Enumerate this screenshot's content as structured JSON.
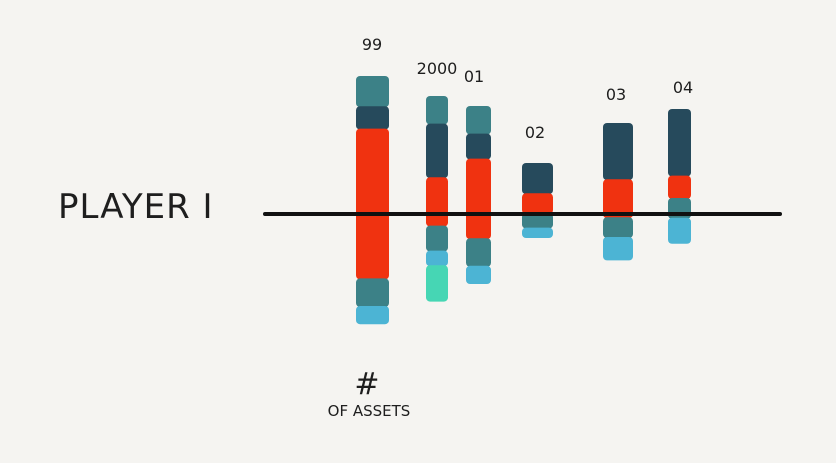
{
  "row_label": "PLAYER I",
  "axis_note": {
    "symbol": "#",
    "text": "OF ASSETS"
  },
  "colors": {
    "dark_navy": "#264a5c",
    "teal": "#3c8187",
    "red_orange": "#f03210",
    "light_blue": "#4cb4d4",
    "mint": "#46d6b4",
    "baseline": "#111111",
    "background": "#f5f4f1"
  },
  "chart_data": {
    "type": "bar",
    "categories": [
      "99",
      "2000",
      "01",
      "02",
      "03",
      "04"
    ],
    "baseline_label": "PLAYER I",
    "note": "# OF ASSETS",
    "series": [
      {
        "color": "teal",
        "values": [
          1.2,
          1.1,
          1.1,
          0,
          0,
          0
        ]
      },
      {
        "color": "dark_navy",
        "values": [
          0.9,
          2.1,
          1.0,
          1.2,
          2.2,
          2.6
        ]
      },
      {
        "color": "red_orange",
        "values": [
          5.8,
          1.9,
          3.1,
          0.8,
          1.5,
          0.9
        ]
      },
      {
        "color": "teal",
        "values": [
          1.1,
          1.0,
          1.1,
          0.6,
          0.8,
          0.8
        ]
      },
      {
        "color": "light_blue",
        "values": [
          0.7,
          0.6,
          0.7,
          0.4,
          0.9,
          1.0
        ]
      },
      {
        "color": "mint",
        "values": [
          0,
          1.4,
          0,
          0,
          0,
          0
        ]
      }
    ]
  }
}
